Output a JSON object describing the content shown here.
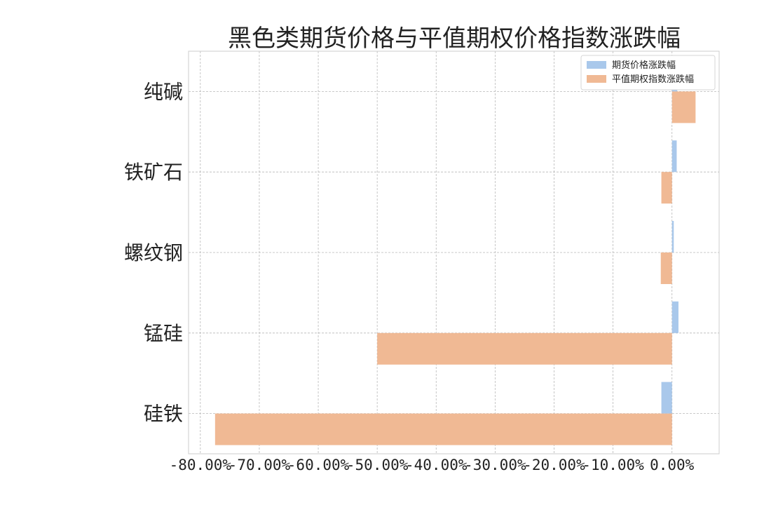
{
  "chart_data": {
    "type": "bar",
    "orientation": "horizontal",
    "title": "黑色类期货价格与平值期权价格指数涨跌幅",
    "categories": [
      "硅铁",
      "锰硅",
      "螺纹钢",
      "铁矿石",
      "纯碱"
    ],
    "series": [
      {
        "name": "期货价格涨跌幅",
        "color": "#a9c8eb",
        "values": [
          -1.8,
          1.1,
          0.3,
          0.8,
          0.9
        ]
      },
      {
        "name": "平值期权指数涨跌幅",
        "color": "#f0b994",
        "values": [
          -77.5,
          -50.0,
          -1.9,
          -1.8,
          4.0
        ]
      }
    ],
    "xlim": [
      -82,
      8
    ],
    "xticks": [
      -80,
      -70,
      -60,
      -50,
      -40,
      -30,
      -20,
      -10,
      0
    ],
    "xtick_labels": [
      "-80.00%",
      "-70.00%",
      "-60.00%",
      "-50.00%",
      "-40.00%",
      "-30.00%",
      "-20.00%",
      "-10.00%",
      "0.00%"
    ],
    "grid": true,
    "legend": "top-right"
  }
}
